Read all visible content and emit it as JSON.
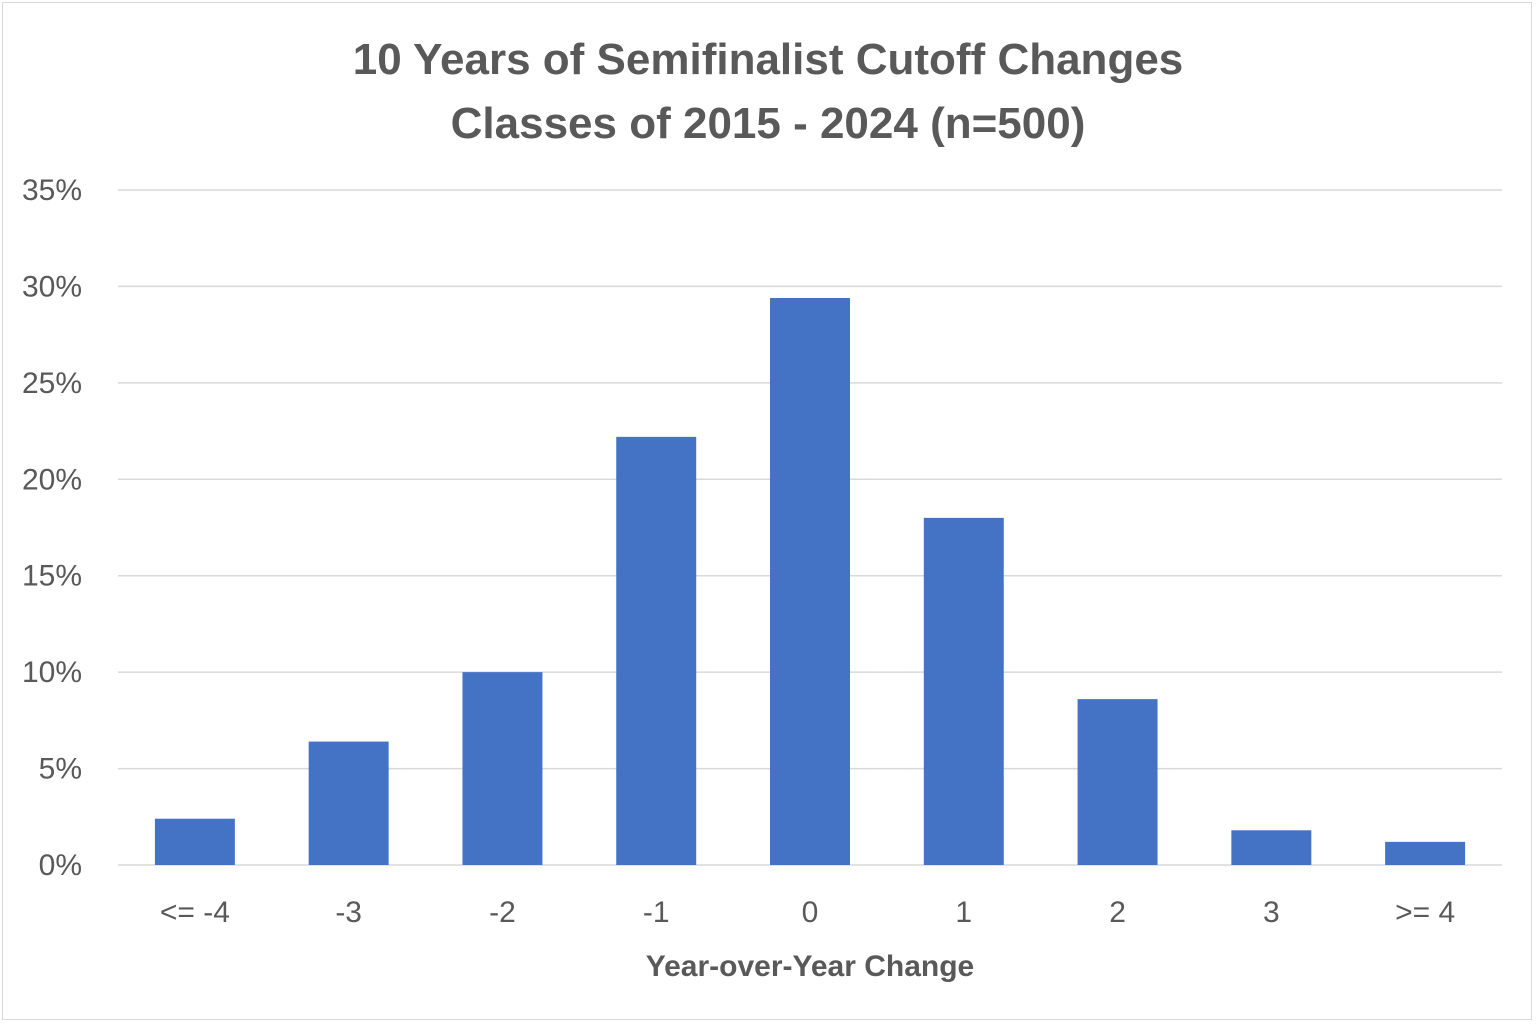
{
  "chart_data": {
    "type": "bar",
    "title": [
      "10 Years of Semifinalist Cutoff Changes",
      "Classes of 2015 - 2024 (n=500)"
    ],
    "xlabel": "Year-over-Year Change",
    "ylabel": "",
    "categories": [
      "<= -4",
      "-3",
      "-2",
      "-1",
      "0",
      "1",
      "2",
      "3",
      ">= 4"
    ],
    "values": [
      2.4,
      6.4,
      10.0,
      22.2,
      29.4,
      18.0,
      8.6,
      1.8,
      1.2
    ],
    "ylim": [
      0,
      35
    ],
    "yticks": [
      "0%",
      "5%",
      "10%",
      "15%",
      "20%",
      "25%",
      "30%",
      "35%"
    ],
    "grid": true,
    "legend": "none",
    "bar_color": "#4472C4",
    "grid_color": "#d9d9d9",
    "text_color": "#595959"
  }
}
